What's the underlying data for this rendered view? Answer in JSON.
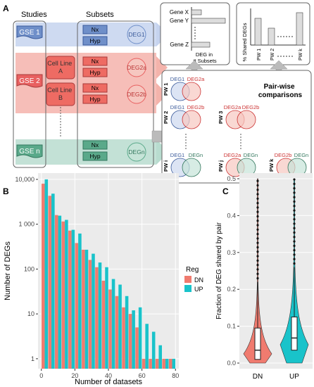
{
  "panel_a": {
    "label": "A",
    "studies_header": "Studies",
    "subsets_header": "Subsets",
    "studies": [
      {
        "name": "GSE 1",
        "color": "#6f8fc9"
      },
      {
        "name": "GSE 2",
        "color": "#e86060"
      },
      {
        "name": "GSE n",
        "color": "#5aa98a"
      }
    ],
    "cell_lines": [
      "Cell Line\nA",
      "Cell Line\nB"
    ],
    "nx_label": "Nx",
    "hyp_label": "Hyp",
    "degs": [
      "DEG1",
      "DEG2a",
      "DEG2b",
      "DEGn"
    ],
    "gene_chart": {
      "genes": [
        "Gene X",
        "Gene Y",
        "Gene Z"
      ],
      "caption": "DEG in\n# Subsets"
    },
    "shared_chart": {
      "ylabel": "% Shared DEGs",
      "bars": [
        "PW 1",
        "PW 2",
        "PW k"
      ]
    },
    "pairwise": {
      "title": "Pair-wise\ncomparisons",
      "pairs": [
        {
          "pw": "PW 1",
          "a": "DEG1",
          "b": "DEG2a"
        },
        {
          "pw": "PW 2",
          "a": "DEG1",
          "b": "DEG2b"
        },
        {
          "pw": "PW 3",
          "a": "DEG2a",
          "b": "DEG2b"
        },
        {
          "pw": "PW i",
          "a": "DEG1",
          "b": "DEGn"
        },
        {
          "pw": "PW j",
          "a": "DEG2a",
          "b": "DEGn"
        },
        {
          "pw": "PW k",
          "a": "DEG2b",
          "b": "DEGn"
        }
      ]
    }
  },
  "chart_data": [
    {
      "panel": "B",
      "type": "bar",
      "xlabel": "Number of datasets",
      "ylabel": "Number of DEGs",
      "y_scale": "log",
      "xlim": [
        -2,
        82
      ],
      "ylim": [
        1,
        12000
      ],
      "x_ticks": [
        0,
        20,
        40,
        60,
        80
      ],
      "y_ticks": [
        1,
        10,
        100,
        1000,
        10000
      ],
      "y_tick_labels": [
        "1",
        "10",
        "100",
        "1 000",
        "10,000"
      ],
      "legend_title": "Reg",
      "legend_position": "right",
      "grid": true,
      "x": [
        2,
        6,
        10,
        14,
        18,
        22,
        26,
        30,
        34,
        38,
        42,
        46,
        50,
        54,
        58,
        62,
        66,
        70,
        74,
        78
      ],
      "series": [
        {
          "name": "DN",
          "color": "#f07b6f",
          "values": [
            8000,
            4300,
            1600,
            1150,
            720,
            380,
            270,
            160,
            110,
            55,
            35,
            25,
            14,
            10,
            5,
            1,
            1,
            1,
            1,
            1
          ]
        },
        {
          "name": "UP",
          "color": "#19c3ca",
          "values": [
            10000,
            4800,
            1550,
            1250,
            750,
            620,
            270,
            220,
            140,
            110,
            60,
            45,
            25,
            12,
            14,
            6,
            4,
            2,
            1,
            1
          ]
        }
      ]
    },
    {
      "panel": "C",
      "type": "violin",
      "xlabel": "Reg",
      "ylabel": "Fraction of DEG shared by pair",
      "ylim": [
        0,
        0.5
      ],
      "y_ticks": [
        0.0,
        0.1,
        0.2,
        0.3,
        0.4,
        0.5
      ],
      "y_tick_labels": [
        "0.0",
        "0.1",
        "0.2",
        "0.3",
        "0.4",
        "0.5"
      ],
      "categories": [
        "DN",
        "UP"
      ],
      "colors": [
        "#f07b6f",
        "#19c3ca"
      ],
      "box_stats": [
        {
          "median": 0.035,
          "q1": 0.01,
          "q3": 0.095,
          "whisker_high": 0.22
        },
        {
          "median": 0.068,
          "q1": 0.035,
          "q3": 0.125,
          "whisker_high": 0.26
        }
      ],
      "max_outlier": [
        0.5,
        0.5
      ]
    }
  ]
}
